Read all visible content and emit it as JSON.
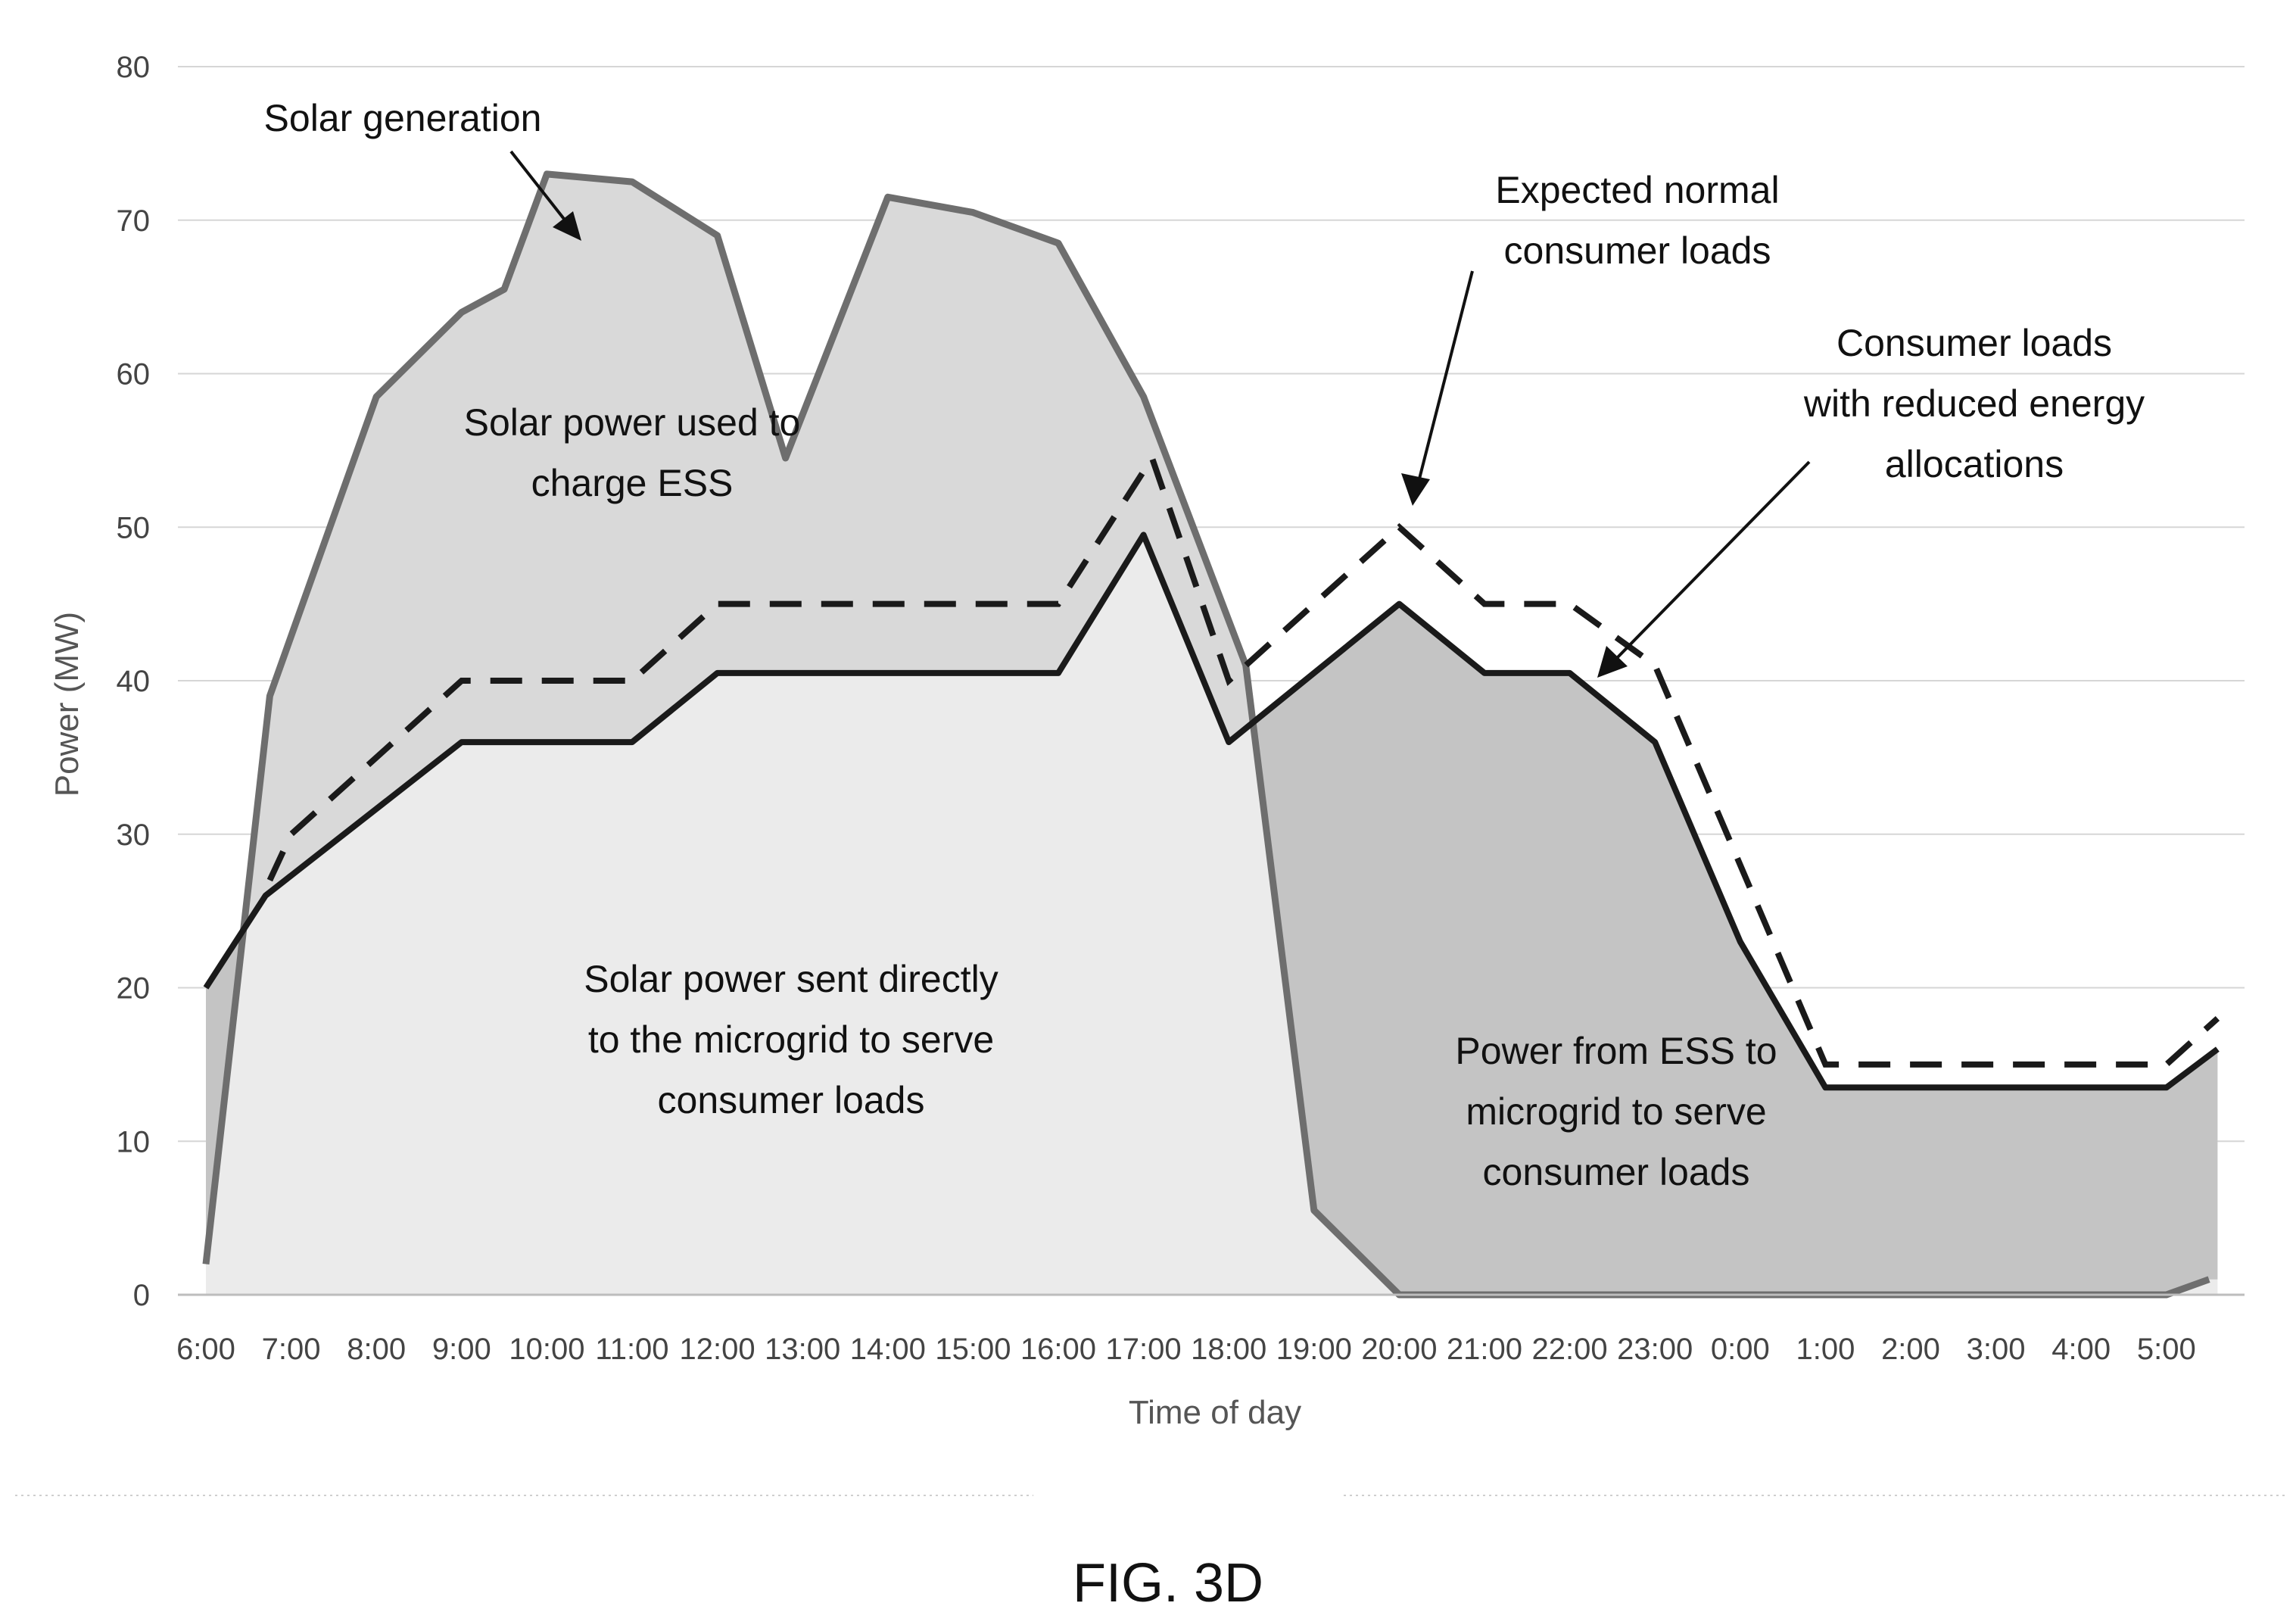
{
  "figure_label": "FIG. 3D",
  "chart_data": {
    "type": "area",
    "xlabel": "Time of day",
    "ylabel": "Power (MW)",
    "ylim": [
      0,
      80
    ],
    "yticks": [
      0,
      10,
      20,
      30,
      40,
      50,
      60,
      70,
      80
    ],
    "categories": [
      "6:00",
      "7:00",
      "8:00",
      "9:00",
      "10:00",
      "11:00",
      "12:00",
      "13:00",
      "14:00",
      "15:00",
      "16:00",
      "17:00",
      "18:00",
      "19:00",
      "20:00",
      "21:00",
      "22:00",
      "23:00",
      "0:00",
      "1:00",
      "2:00",
      "3:00",
      "4:00",
      "5:00"
    ],
    "grid": true,
    "series": [
      {
        "name": "Solar generation",
        "style": "solid-gray",
        "points": [
          [
            0,
            2
          ],
          [
            0.75,
            39
          ],
          [
            2,
            58.5
          ],
          [
            3,
            64
          ],
          [
            3.5,
            65.5
          ],
          [
            4,
            73
          ],
          [
            5,
            72.5
          ],
          [
            6,
            69
          ],
          [
            6.8,
            54.5
          ],
          [
            8,
            71.5
          ],
          [
            9,
            70.5
          ],
          [
            9.5,
            69.5
          ],
          [
            10,
            68.5
          ],
          [
            11,
            58.5
          ],
          [
            12.2,
            41
          ],
          [
            13,
            5.5
          ],
          [
            14,
            0
          ],
          [
            23,
            0
          ],
          [
            23.5,
            1
          ]
        ]
      },
      {
        "name": "Expected normal consumer loads",
        "style": "dashed-black",
        "points": [
          [
            0.75,
            27
          ],
          [
            1,
            30
          ],
          [
            3,
            40
          ],
          [
            5,
            40
          ],
          [
            6,
            45
          ],
          [
            10,
            45
          ],
          [
            11.1,
            54.5
          ],
          [
            12,
            40
          ],
          [
            14,
            50
          ],
          [
            15,
            45
          ],
          [
            16,
            45
          ],
          [
            17,
            41
          ],
          [
            19,
            15
          ],
          [
            23,
            15
          ],
          [
            23.6,
            18
          ]
        ]
      },
      {
        "name": "Consumer loads with reduced energy allocations",
        "style": "solid-black",
        "points": [
          [
            0,
            20
          ],
          [
            0.7,
            26
          ],
          [
            3,
            36
          ],
          [
            5,
            36
          ],
          [
            6,
            40.5
          ],
          [
            10,
            40.5
          ],
          [
            11,
            49.5
          ],
          [
            12,
            36
          ],
          [
            14,
            45
          ],
          [
            15,
            40.5
          ],
          [
            16,
            40.5
          ],
          [
            17,
            36
          ],
          [
            18,
            23
          ],
          [
            19,
            13.5
          ],
          [
            23,
            13.5
          ],
          [
            23.6,
            16
          ]
        ]
      }
    ],
    "annotations": [
      "Solar generation",
      "Expected normal consumer loads",
      "Consumer loads with reduced energy allocations",
      "Solar power used to charge ESS",
      "Solar power sent directly to the microgrid to serve consumer loads",
      "Power from ESS to microgrid to serve consumer loads"
    ]
  },
  "labels": {
    "solar_generation": "Solar generation",
    "expected_line1": "Expected normal",
    "expected_line2": "consumer loads",
    "reduced_line1": "Consumer loads",
    "reduced_line2": "with reduced energy",
    "reduced_line3": "allocations",
    "charge_line1": "Solar power used to",
    "charge_line2": "charge ESS",
    "direct_line1": "Solar power sent directly",
    "direct_line2": "to the microgrid to serve",
    "direct_line3": "consumer loads",
    "ess_line1": "Power from ESS to",
    "ess_line2": "microgrid to serve",
    "ess_line3": "consumer loads"
  }
}
